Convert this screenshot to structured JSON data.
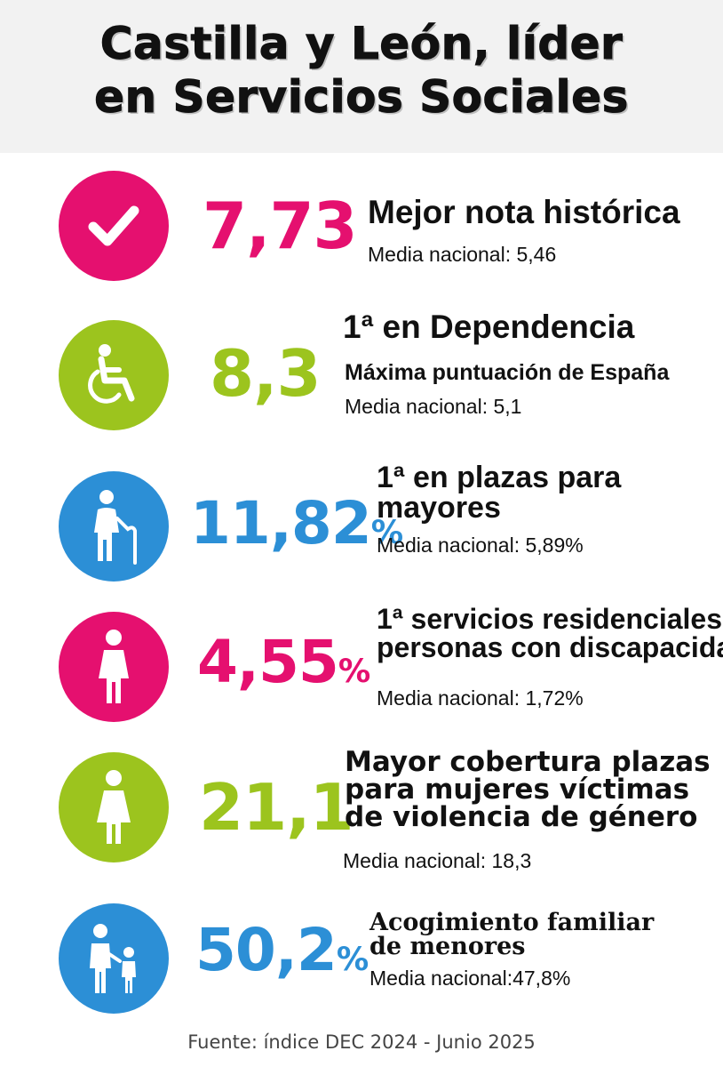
{
  "title": {
    "line1": "Castilla y León, líder",
    "line2": "en Servicios Sociales"
  },
  "colors": {
    "magenta": "#e5106f",
    "green": "#9cc41e",
    "blue": "#2c8fd6"
  },
  "items": [
    {
      "icon": "checkmark-icon",
      "color": "magenta",
      "value": "7,73",
      "unit": "",
      "heading": [
        "Mejor nota histórica"
      ],
      "subheading": "",
      "media": "Media nacional: 5,46"
    },
    {
      "icon": "wheelchair-icon",
      "color": "green",
      "value": "8,3",
      "unit": "",
      "heading": [
        "1ª en Dependencia"
      ],
      "subheading": "Máxima puntuación de España",
      "media": "Media nacional: 5,1"
    },
    {
      "icon": "elderly-person-icon",
      "color": "blue",
      "value": "11,82",
      "unit": "%",
      "heading": [
        "1ª en plazas para",
        "mayores"
      ],
      "subheading": "",
      "media": "Media nacional: 5,89%"
    },
    {
      "icon": "person-icon",
      "color": "magenta",
      "value": "4,55",
      "unit": "%",
      "heading": [
        "1ª servicios residenciales",
        "personas con discapacidad"
      ],
      "subheading": "",
      "media": "Media nacional: 1,72%"
    },
    {
      "icon": "woman-icon",
      "color": "green",
      "value": "21,1",
      "unit": "",
      "heading": [
        "Mayor cobertura plazas",
        "para mujeres víctimas",
        "de violencia de género"
      ],
      "subheading": "",
      "media": "Media nacional: 18,3"
    },
    {
      "icon": "adult-child-icon",
      "color": "blue",
      "value": "50,2",
      "unit": "%",
      "heading": [
        "Acogimiento familiar",
        "de menores"
      ],
      "subheading": "",
      "media": "Media nacional:47,8%"
    }
  ],
  "footer": "Fuente: índice DEC 2024 - Junio 2025"
}
